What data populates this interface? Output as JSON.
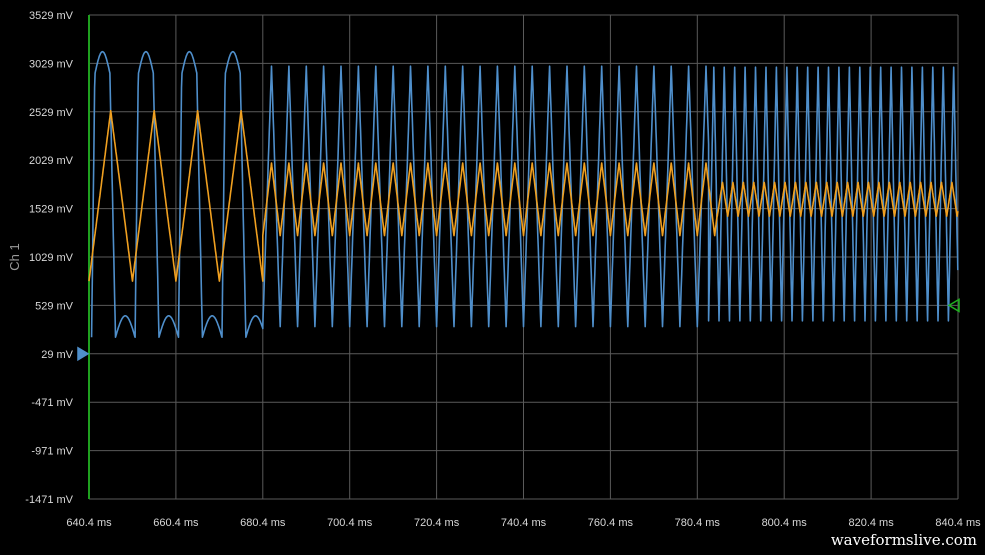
{
  "chart_data": {
    "type": "line",
    "ylabel": "Ch 1",
    "xlim": [
      640.4,
      840.4
    ],
    "ylim": [
      -1471,
      3529
    ],
    "x_ticks": [
      "640.4 ms",
      "660.4 ms",
      "680.4 ms",
      "700.4 ms",
      "720.4 ms",
      "740.4 ms",
      "760.4 ms",
      "780.4 ms",
      "800.4 ms",
      "820.4 ms",
      "840.4 ms"
    ],
    "y_ticks": [
      "3529 mV",
      "3029 mV",
      "2529 mV",
      "2029 mV",
      "1529 mV",
      "1029 mV",
      "529 mV",
      "29 mV",
      "-471 mV",
      "-971 mV",
      "-1471 mV"
    ],
    "grid": true,
    "series": [
      {
        "color": "#4f8fcb",
        "segments": [
          {
            "x_start": 641.0,
            "x_end": 680.4,
            "period_ms": 10.0,
            "max_mV": 3150,
            "min_mV": 200,
            "shape": "square-ish"
          },
          {
            "x_start": 680.4,
            "x_end": 783.0,
            "period_ms": 4.0,
            "max_mV": 3000,
            "min_mV": 310,
            "shape": "triangle"
          },
          {
            "x_start": 783.0,
            "x_end": 840.4,
            "period_ms": 2.4,
            "max_mV": 2990,
            "min_mV": 370,
            "shape": "triangle"
          }
        ]
      },
      {
        "color": "#f0a020",
        "segments": [
          {
            "x_start": 640.4,
            "x_end": 680.4,
            "period_ms": 10.0,
            "max_mV": 2540,
            "min_mV": 780,
            "shape": "triangle"
          },
          {
            "x_start": 680.4,
            "x_end": 785.0,
            "period_ms": 4.0,
            "max_mV": 2000,
            "min_mV": 1250,
            "shape": "triangle"
          },
          {
            "x_start": 785.0,
            "x_end": 840.4,
            "period_ms": 2.4,
            "max_mV": 1800,
            "min_mV": 1450,
            "shape": "triangle"
          }
        ]
      }
    ],
    "markers": [
      {
        "name": "ch1-offset-marker",
        "side": "left",
        "y_mV": 29,
        "color": "#4f8fcb"
      },
      {
        "name": "trigger-level-marker",
        "side": "right",
        "y_mV": 529,
        "color": "#20b020"
      }
    ]
  },
  "watermark": "waveformslive.com"
}
